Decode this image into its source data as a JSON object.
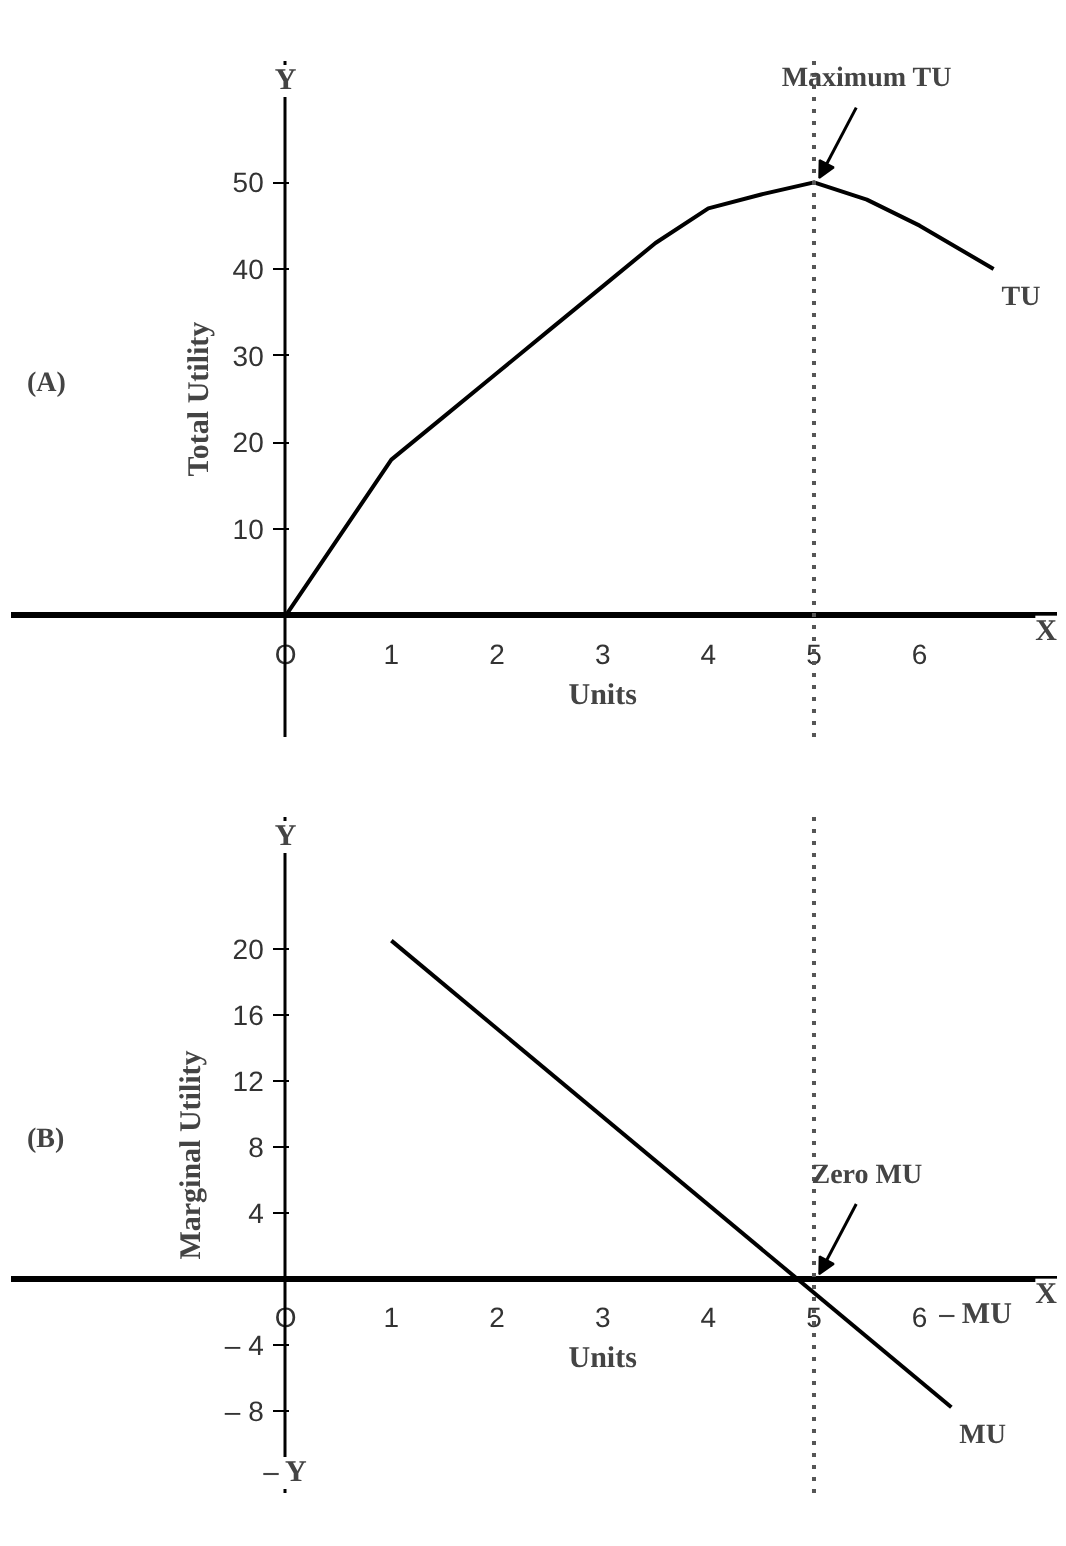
{
  "chart_data": [
    {
      "type": "line",
      "title": "(A)",
      "xlabel": "Units",
      "ylabel": "Total Utility",
      "x": [
        0,
        0.5,
        1,
        1.5,
        2,
        2.5,
        3,
        3.5,
        4,
        4.5,
        5,
        5.5,
        6,
        6.7
      ],
      "series": [
        {
          "name": "TU",
          "color": "#000000",
          "values": [
            0,
            9,
            18,
            23,
            28,
            33,
            38,
            43,
            47,
            48.6,
            50,
            48,
            45,
            40
          ]
        }
      ],
      "xlim": [
        -2.6,
        7.3
      ],
      "ylim": [
        -14,
        64
      ],
      "xticks": [
        {
          "value": 0,
          "label": "O"
        },
        1,
        2,
        3,
        4,
        5,
        6
      ],
      "yticks": [
        10,
        20,
        30,
        40,
        50
      ],
      "ref_lines": [
        {
          "axis": "x",
          "value": 5,
          "line_style": "dotted"
        }
      ],
      "annotations": [
        "Y",
        "X",
        {
          "text": "Maximum TU",
          "x": 5,
          "y": 50
        }
      ],
      "grid": false,
      "marker": "none",
      "line_style": "solid"
    },
    {
      "type": "line",
      "title": "(B)",
      "xlabel": "Units",
      "ylabel": "Marginal Utility",
      "x": [
        1,
        6.3
      ],
      "series": [
        {
          "name": "MU",
          "color": "#000000",
          "values": [
            20.5,
            -7.8
          ]
        }
      ],
      "xlim": [
        -2.6,
        7.3
      ],
      "ylim": [
        -13,
        28
      ],
      "xticks": [
        {
          "value": 0,
          "label": "O"
        },
        1,
        2,
        3,
        4,
        5,
        6
      ],
      "yticks": [
        {
          "value": -8,
          "label": "– 8"
        },
        {
          "value": -4,
          "label": "– 4"
        },
        4,
        8,
        12,
        16,
        20
      ],
      "ref_lines": [
        {
          "axis": "x",
          "value": 5,
          "line_style": "dotted"
        }
      ],
      "annotations": [
        "Y",
        "X",
        "– Y",
        "– MU",
        {
          "text": "Zero MU",
          "x": 5,
          "y": 0
        }
      ],
      "grid": false,
      "marker": "none",
      "line_style": "solid"
    }
  ]
}
